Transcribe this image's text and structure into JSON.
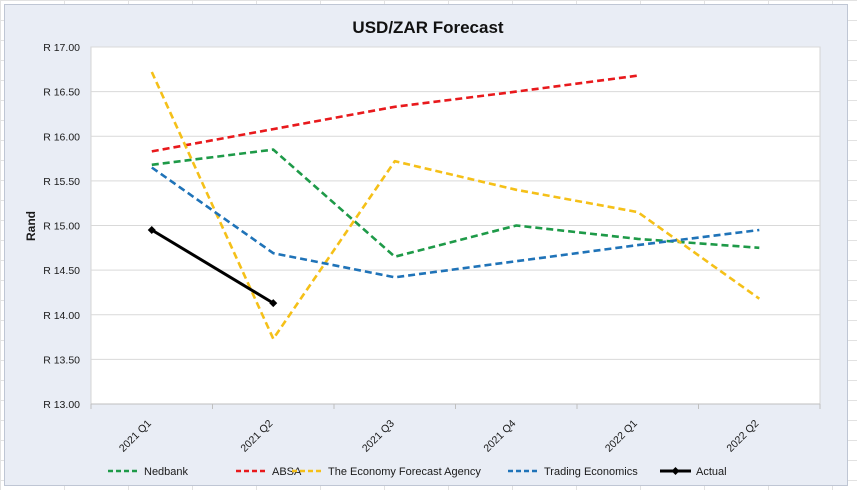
{
  "chart_data": {
    "type": "line",
    "title": "USD/ZAR Forecast",
    "xlabel": "",
    "ylabel": "Rand",
    "ylim": [
      13.0,
      17.0
    ],
    "y_ticks": [
      13.0,
      13.5,
      14.0,
      14.5,
      15.0,
      15.5,
      16.0,
      16.5,
      17.0
    ],
    "y_tick_labels": [
      "R 13.00",
      "R 13.50",
      "R 14.00",
      "R 14.50",
      "R 15.00",
      "R 15.50",
      "R 16.00",
      "R 16.50",
      "R 17.00"
    ],
    "categories": [
      "2021 Q1",
      "2021 Q2",
      "2021 Q3",
      "2021 Q4",
      "2022 Q1",
      "2022 Q2"
    ],
    "grid": "horizontal",
    "legend_position": "bottom",
    "series": [
      {
        "name": "Nedbank",
        "color": "#1e9a48",
        "dash": "dashed",
        "marker": "none",
        "values": [
          15.68,
          15.85,
          14.65,
          15.0,
          14.85,
          14.75
        ]
      },
      {
        "name": "ABSA",
        "color": "#e8191c",
        "dash": "dashed",
        "marker": "none",
        "values": [
          15.83,
          16.08,
          16.33,
          16.5,
          16.68,
          null
        ]
      },
      {
        "name": "The Economy Forecast Agency",
        "color": "#f5c018",
        "dash": "dashed",
        "marker": "none",
        "values": [
          16.72,
          13.73,
          15.72,
          15.4,
          15.15,
          14.18
        ]
      },
      {
        "name": "Trading Economics",
        "color": "#1f73b8",
        "dash": "dashed",
        "marker": "none",
        "values": [
          15.65,
          14.69,
          14.42,
          14.6,
          14.78,
          14.95
        ]
      },
      {
        "name": "Actual",
        "color": "#000000",
        "dash": "solid",
        "marker": "diamond",
        "values": [
          14.95,
          14.13,
          null,
          null,
          null,
          null
        ]
      }
    ]
  }
}
